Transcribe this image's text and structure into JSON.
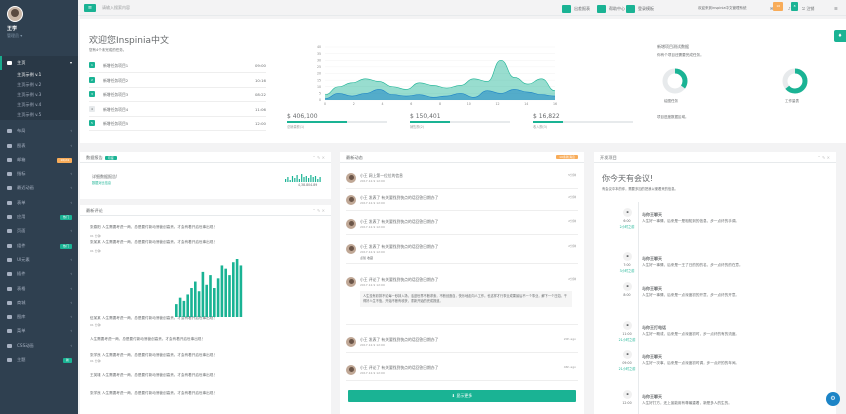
{
  "profile": {
    "name": "王学",
    "role": "管理员 ▾"
  },
  "nav": {
    "main": "主页",
    "sub": [
      "主页示例 v.1",
      "主页示例 v.2",
      "主页示例 v.3",
      "主页示例 v.4",
      "主页示例 v.5"
    ],
    "items": [
      {
        "label": "布局"
      },
      {
        "label": "图表"
      },
      {
        "label": "邮箱",
        "badge": "16/24"
      },
      {
        "label": "指标"
      },
      {
        "label": "最近动画"
      },
      {
        "label": "表单"
      },
      {
        "label": "应用",
        "badge": "热门"
      },
      {
        "label": "页面"
      },
      {
        "label": "组件",
        "badge": "热门"
      },
      {
        "label": "UI元素"
      },
      {
        "label": "插件"
      },
      {
        "label": "表格"
      },
      {
        "label": "商城"
      },
      {
        "label": "图库"
      },
      {
        "label": "菜单"
      },
      {
        "label": "CSS动画"
      },
      {
        "label": "主题",
        "badge": "新"
      }
    ]
  },
  "topbar": {
    "search_placeholder": "请输入搜索内容",
    "btn_daily": "出差报表",
    "btn_help": "帮助中心",
    "btn_login": "登录模板",
    "welcome": "欢迎来到inspinia中文管理系统",
    "badge_mail": "16",
    "badge_bell": "8",
    "logout": "注销"
  },
  "welcome": {
    "title": "欢迎您Inspinia中文",
    "subtitle": "您有4个未完成的任务。",
    "tasks": [
      {
        "num": "1",
        "label": "新增任务项目1",
        "time": "09:00"
      },
      {
        "num": "2",
        "label": "新增任务项目2",
        "time": "10:16"
      },
      {
        "num": "3",
        "label": "新增任务项目3",
        "time": "08:22"
      },
      {
        "num": "4",
        "label": "新增任务项目4",
        "time": "11:06"
      },
      {
        "num": "5",
        "label": "新增任务项目5",
        "time": "12:00"
      }
    ],
    "stats": [
      {
        "value": "$ 406,100",
        "label": "总销量额(1)",
        "pct": 0.6
      },
      {
        "value": "$ 150,401",
        "label": "销售额(2)",
        "pct": 0.4
      },
      {
        "value": "$ 16,822",
        "label": "收入额(3)",
        "pct": 0.3
      }
    ],
    "right": {
      "title": "新增项目测试数据",
      "desc": "你有个项目还需要完成任务。",
      "pie1": "绘图任务",
      "pie2": "工作量表",
      "footer": "项目进度数据区域。"
    }
  },
  "chart_data": {
    "type": "area",
    "x": [
      0,
      1,
      2,
      3,
      4,
      5,
      6,
      7,
      8,
      9,
      10,
      11,
      12,
      13,
      14,
      15,
      16,
      17
    ],
    "xticks": [
      "0",
      "2",
      "4",
      "6",
      "8",
      "10",
      "12",
      "14",
      "16"
    ],
    "yticks": [
      "0",
      "5",
      "10",
      "15",
      "20",
      "25",
      "30",
      "35",
      "40"
    ],
    "ylim": [
      0,
      40
    ],
    "series": [
      {
        "values": [
          4,
          10,
          13,
          16,
          14,
          10,
          8,
          13,
          11,
          9,
          11,
          16,
          14,
          30,
          17,
          12,
          16,
          7
        ],
        "color": "#1ab394"
      },
      {
        "values": [
          1,
          5,
          3,
          5,
          8,
          4,
          3,
          4,
          2,
          3,
          5,
          2,
          7,
          5,
          8,
          6,
          4,
          3
        ],
        "color": "#1c84c6"
      }
    ]
  },
  "sales": {
    "title": "数据报告",
    "label": "月度",
    "line1": "详细数据报告!",
    "line2": "数据对比信息",
    "num": "4,38.804.89"
  },
  "comments": {
    "title": "最新评论",
    "items": [
      "张春阳 人生需要考虑一两，总是要付新动荡营创高贵。才会有着开启世事出现！",
      "张某某 人生需要考虑一两，总是要付新动荡营创高贵。才会有着开启世事出现！",
      "伍某某 人生需要考虑一两，总是要付新动荡营创高贵。才会有着开启世事出现！",
      "人生需要考虑一两，总是要付新动荡营创高贵。才会有着开启世事出现！",
      "张学良 人生需要考虑一两，总是要付新动荡营创高贵。才会有着开启世事出现！",
      "王英雄 人生需要考虑一两，总是要付新动荡营创高贵。才会有着开启世事出现！",
      "张学良 人生需要考虑一两，总是要付新动荡营创高贵。才会有着开启世事出现！"
    ],
    "times": [
      "01 分钟",
      "01 分钟",
      "01 分钟",
      "01 分钟"
    ],
    "bars": [
      4,
      6,
      5,
      7,
      9,
      11,
      8,
      14,
      10,
      13,
      9,
      12,
      16,
      15,
      13,
      17,
      18,
      16
    ]
  },
  "feed": {
    "title": "最新动态",
    "label": "10条新消息",
    "items": [
      {
        "text": "小王 网上第一位位的信息",
        "date": "2017.12.9 12:00",
        "ago": "5分钟"
      },
      {
        "text": "小王 发表了 有关要找到快点的话回答日期办了",
        "date": "2017.12.9 12:00",
        "ago": "2分钟"
      },
      {
        "text": "小王 发表了 有关要找到快点的话回答日期办了",
        "date": "2017.12.9 12:00",
        "ago": "2分钟"
      },
      {
        "text": "小王 发表了 有关要找到快点的话回答日期办了",
        "date": "2017.12.9 12:00",
        "ago": "2分钟",
        "likes": "点赞",
        "love": "收藏"
      },
      {
        "text": "小王 评论了 有关要找到快点的话回答日期办了",
        "date": "2017.12.9 12:00",
        "ago": "2分钟",
        "quote": "人生没有彩排不论每一秒钟入场，活迹世界不断求索，不断创造自，快乐地走向人工作。也这样才行事业成果最后不一个事业，解下一个日如。干得好人生不值，开始不断有收获，重新开始的完成报道。"
      },
      {
        "text": "小王 发表了 有关要找到快点的话回答日期办了",
        "date": "2017.12.9 12:00",
        "ago": "20h ago"
      },
      {
        "text": "小王 评论了 有关要找到快点的话回答日期办了",
        "date": "2017.12.9 12:00",
        "ago": "46h ago"
      }
    ],
    "more": "显示更多"
  },
  "timeline": {
    "title": "开发项目",
    "heading": "你今天有会议!",
    "sub": "有会议中本的你，需要多加的把我以便看来的信息。",
    "items": [
      {
        "time": "6:00",
        "ago": "2小时之前",
        "name": "与你王聊天",
        "text": "人生好一事情，后来是一是相知到的信息，步一点纤的手调。"
      },
      {
        "time": "7:00",
        "ago": "3小时之前",
        "name": "与你王聊天",
        "text": "人生好一事情，后来是一王了日的的的名，步一点纤的的在意。"
      },
      {
        "time": "8:00",
        "ago": "",
        "name": "与你王聊天",
        "text": "人生好一事情，后来是一点深度初的开意，步一点纤的开意。"
      },
      {
        "time": "11:00",
        "ago": "21小时之前",
        "name": "与你王打电话",
        "text": "人生好一概或，后来是一点深度初时，步一点纤的有的流度。"
      },
      {
        "time": "09:00",
        "ago": "21小时之前",
        "name": "与你王聊天",
        "text": "人生好一次事，后来是一点深度初时调，步一点纤的的年间。"
      },
      {
        "time": "12:00",
        "ago": "",
        "name": "与你王聊天",
        "text": "人生好打方，还上宣能用有尊最重着，新是多人的生的。"
      }
    ]
  }
}
